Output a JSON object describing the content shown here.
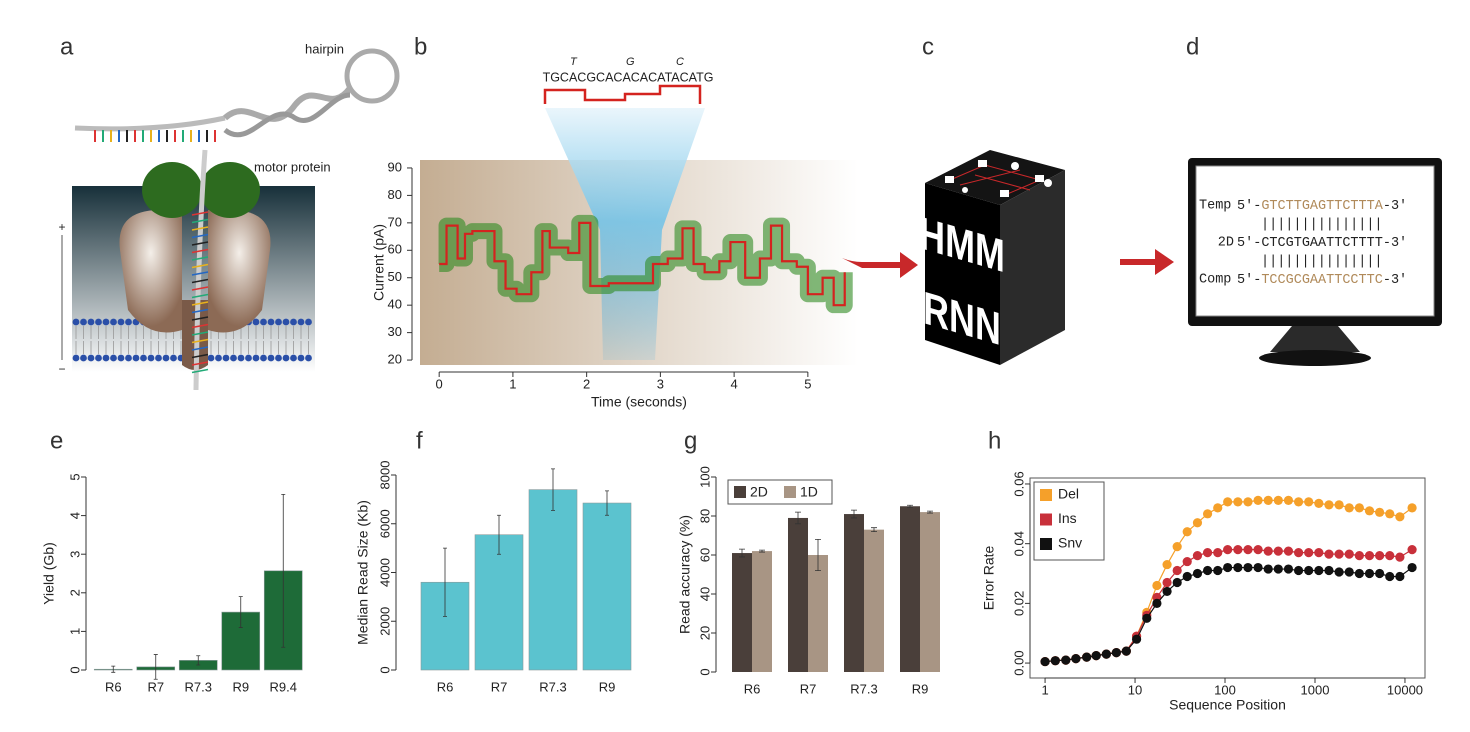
{
  "panel_labels": [
    "a",
    "b",
    "c",
    "d",
    "e",
    "f",
    "g",
    "h"
  ],
  "panel_a": {
    "hairpin": "hairpin",
    "motor_protein": "motor protein",
    "plus": "+",
    "minus": "−"
  },
  "panel_b": {
    "sequence": "TGCACGCACACACATACATG",
    "insert_1": "T",
    "insert_2": "G",
    "insert_3": "C"
  },
  "panel_c": {
    "top": "HMM",
    "bottom": "RNN"
  },
  "panel_d": {
    "rows": [
      {
        "name": "Temp",
        "prefix": "5′-",
        "seq": "GTCTTGAGTTCTTTA",
        "suffix": "-3′"
      },
      {
        "name": "2D",
        "prefix": "5′-",
        "seq": "CTCGTGAATTCTTTT",
        "suffix": "-3′"
      },
      {
        "name": "Comp",
        "prefix": "5′-",
        "seq": "TCCGCGAATTCCTTC",
        "suffix": "-3′"
      }
    ],
    "match": "|||||||||||||||"
  },
  "chart_data": [
    {
      "type": "line",
      "step": "post",
      "xlabel": "Time (seconds)",
      "ylabel": "Current (pA)",
      "x": [
        0,
        0.1,
        0.25,
        0.35,
        0.45,
        0.75,
        0.9,
        1.05,
        1.25,
        1.4,
        1.5,
        1.75,
        1.9,
        2.05,
        2.3,
        2.7,
        2.9,
        3.1,
        3.3,
        3.45,
        3.6,
        3.8,
        3.95,
        4.15,
        4.35,
        4.5,
        4.65,
        4.85,
        5.0,
        5.2,
        5.35,
        5.5
      ],
      "values": [
        55,
        69,
        57,
        66,
        67,
        56,
        46,
        44,
        52,
        67,
        61,
        59,
        70,
        47,
        48,
        48,
        55,
        57,
        68,
        55,
        52,
        56,
        63,
        50,
        57,
        69,
        56,
        54,
        44,
        50,
        40,
        52
      ],
      "color": "#d4231f",
      "noise_color": "#2f8a22",
      "xlim": [
        -0.26,
        5.68
      ],
      "xticks": [
        0,
        1,
        2,
        3,
        4,
        5
      ],
      "ylim": [
        18.2,
        92.9
      ],
      "yticks": [
        20,
        30,
        40,
        50,
        60,
        70,
        80,
        90
      ]
    },
    {
      "type": "bar",
      "ylabel": "Yield (Gb)",
      "categories": [
        "R6",
        "R7",
        "R7.3",
        "R9",
        "R9.4"
      ],
      "values": [
        0.02,
        0.08,
        0.25,
        1.5,
        2.57
      ],
      "errors": [
        0.08,
        0.32,
        0.12,
        0.4,
        1.98
      ],
      "color": "#1e6b38",
      "ylim": [
        0,
        5
      ],
      "yticks": [
        0,
        1,
        2,
        3,
        4,
        5
      ]
    },
    {
      "type": "bar",
      "ylabel": "Median Read Size (Kb)",
      "categories": [
        "R6",
        "R7",
        "R7.3",
        "R9"
      ],
      "values": [
        3600,
        5550,
        7400,
        6850
      ],
      "errors": [
        1400,
        800,
        850,
        500
      ],
      "color": "#5bc3cf",
      "ylim": [
        0,
        8000
      ],
      "yticks": [
        0,
        2000,
        4000,
        6000,
        8000
      ]
    },
    {
      "type": "bar",
      "ylabel": "Read accuracy (%)",
      "categories": [
        "R6",
        "R7",
        "R7.3",
        "R9"
      ],
      "series": [
        {
          "name": "2D",
          "color": "#4a3f3a",
          "values": [
            61,
            79,
            81,
            85
          ],
          "errors": [
            2,
            3,
            2,
            0.5
          ]
        },
        {
          "name": "1D",
          "color": "#a89584",
          "values": [
            62,
            60,
            73,
            82
          ],
          "errors": [
            0.5,
            8,
            1,
            0.5
          ]
        }
      ],
      "legend": "top-left",
      "ylim": [
        0,
        100
      ],
      "yticks": [
        0,
        20,
        40,
        60,
        80,
        100
      ]
    },
    {
      "type": "line",
      "markers": true,
      "xlog": true,
      "frame": true,
      "legend": "top-left",
      "xlabel": "Sequence Position",
      "ylabel": "Error Rate",
      "x": [
        1,
        1.3,
        1.7,
        2.2,
        2.9,
        3.7,
        4.8,
        6.2,
        8,
        10.4,
        13.5,
        17.5,
        22.7,
        29.4,
        38,
        49.4,
        64,
        83,
        107,
        139,
        180,
        233,
        302,
        391,
        507,
        657,
        851,
        1103,
        1430,
        1853,
        2402,
        3113,
        4034,
        5228,
        6775,
        8780,
        12000
      ],
      "series": [
        {
          "name": "Del",
          "color": "#f5a02a",
          "values": [
            0.0005,
            0.0008,
            0.001,
            0.0015,
            0.002,
            0.0025,
            0.003,
            0.0035,
            0.004,
            0.009,
            0.017,
            0.026,
            0.033,
            0.039,
            0.044,
            0.047,
            0.05,
            0.052,
            0.054,
            0.054,
            0.054,
            0.0545,
            0.0545,
            0.0545,
            0.0545,
            0.054,
            0.054,
            0.0535,
            0.053,
            0.053,
            0.052,
            0.052,
            0.051,
            0.0505,
            0.05,
            0.049,
            0.052
          ]
        },
        {
          "name": "Ins",
          "color": "#c8303a",
          "values": [
            0.0005,
            0.0008,
            0.001,
            0.0015,
            0.002,
            0.0025,
            0.003,
            0.0035,
            0.004,
            0.009,
            0.016,
            0.022,
            0.027,
            0.031,
            0.034,
            0.036,
            0.037,
            0.037,
            0.038,
            0.038,
            0.038,
            0.038,
            0.0375,
            0.0375,
            0.0375,
            0.037,
            0.037,
            0.037,
            0.0365,
            0.0365,
            0.0365,
            0.036,
            0.036,
            0.036,
            0.036,
            0.0355,
            0.038
          ]
        },
        {
          "name": "Snv",
          "color": "#111111",
          "values": [
            0.0005,
            0.0008,
            0.001,
            0.0015,
            0.002,
            0.0025,
            0.003,
            0.0035,
            0.004,
            0.008,
            0.015,
            0.02,
            0.024,
            0.027,
            0.029,
            0.03,
            0.031,
            0.031,
            0.032,
            0.032,
            0.032,
            0.032,
            0.0315,
            0.0315,
            0.0315,
            0.031,
            0.031,
            0.031,
            0.031,
            0.0305,
            0.0305,
            0.03,
            0.03,
            0.03,
            0.029,
            0.029,
            0.032
          ]
        }
      ],
      "xlim": [
        0.68,
        16700
      ],
      "xticks": [
        1,
        10,
        100,
        1000,
        10000
      ],
      "ylim": [
        -0.005,
        0.062
      ],
      "yticks": [
        {
          "value": 0,
          "label": "0.00"
        },
        {
          "value": 0.02,
          "label": "0.02"
        },
        {
          "value": 0.04,
          "label": "0.04"
        },
        {
          "value": 0.06,
          "label": "0.06"
        }
      ]
    }
  ]
}
